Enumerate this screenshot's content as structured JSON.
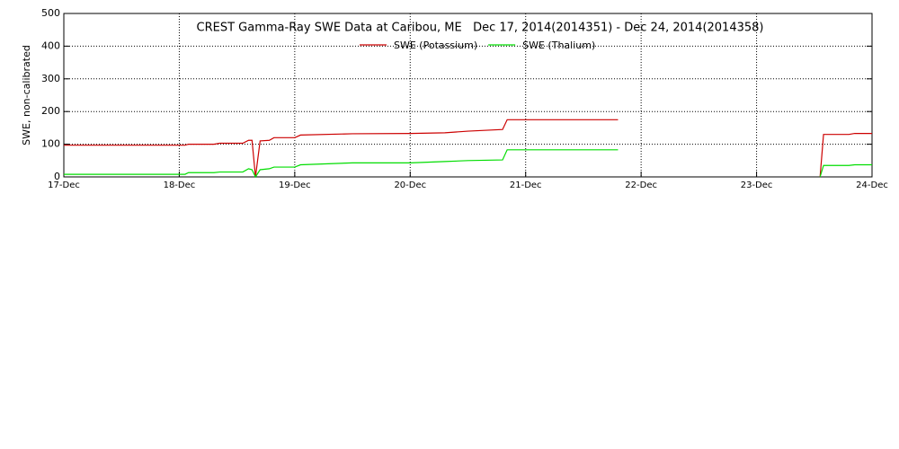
{
  "chart_data": {
    "type": "line",
    "title": "CREST Gamma-Ray SWE Data at Caribou, ME   Dec 17, 2014(2014351) - Dec 24, 2014(2014358)",
    "y_label": "SWE, non-calibrated",
    "x": [
      17.0,
      18.05,
      18.08,
      18.3,
      18.35,
      18.55,
      18.6,
      18.63,
      18.66,
      18.7,
      18.78,
      18.82,
      19.0,
      19.05,
      19.5,
      20.0,
      20.3,
      20.5,
      20.8,
      20.84,
      21.8,
      22.5,
      23.55,
      23.58,
      23.8,
      23.85,
      24.0
    ],
    "series": [
      {
        "name": "SWE (Potassium)",
        "color": "#cc0000",
        "values": [
          97,
          97,
          100,
          100,
          103,
          103,
          112,
          112,
          0,
          110,
          112,
          120,
          120,
          128,
          132,
          133,
          135,
          140,
          145,
          175,
          175,
          null,
          0,
          130,
          130,
          133,
          133
        ]
      },
      {
        "name": "SWE (Thalium)",
        "color": "#00dd00",
        "values": [
          8,
          8,
          13,
          13,
          15,
          15,
          25,
          22,
          0,
          22,
          25,
          30,
          30,
          37,
          43,
          43,
          47,
          50,
          52,
          83,
          83,
          null,
          0,
          35,
          35,
          37,
          37
        ]
      }
    ],
    "xlim": [
      17,
      24
    ],
    "xticks": [
      {
        "value": 17,
        "label": "17-Dec"
      },
      {
        "value": 18,
        "label": "18-Dec"
      },
      {
        "value": 19,
        "label": "19-Dec"
      },
      {
        "value": 20,
        "label": "20-Dec"
      },
      {
        "value": 21,
        "label": "21-Dec"
      },
      {
        "value": 22,
        "label": "22-Dec"
      },
      {
        "value": 23,
        "label": "23-Dec"
      },
      {
        "value": 24,
        "label": "24-Dec"
      }
    ],
    "ylim": [
      0,
      500
    ],
    "yticks": [
      0,
      100,
      200,
      300,
      400,
      500
    ],
    "grid": true
  }
}
